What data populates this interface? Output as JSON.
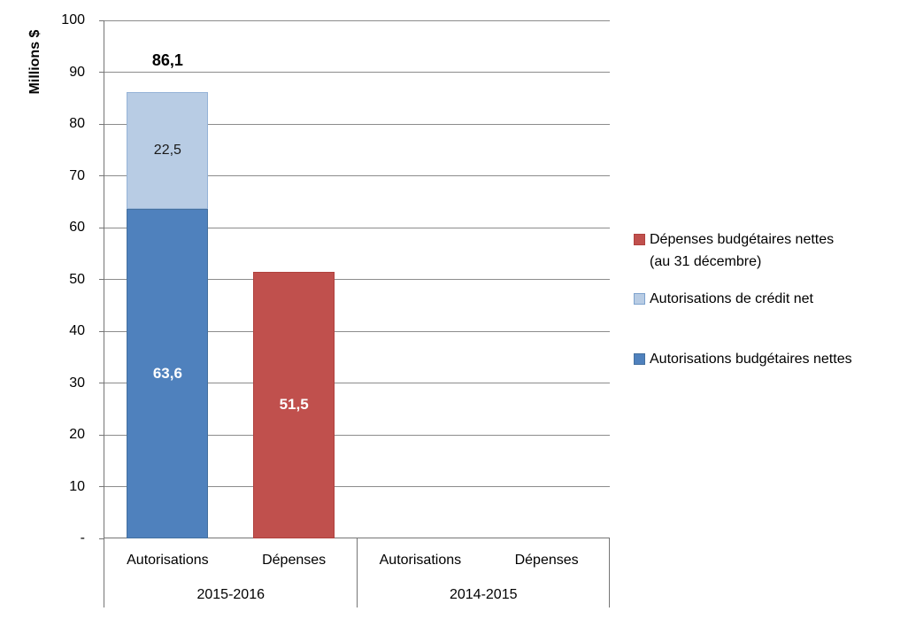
{
  "chart_data": {
    "type": "bar",
    "stacked": true,
    "title": "",
    "ylabel": "Millions $",
    "xlabel": "",
    "ylim": [
      0,
      100
    ],
    "ytick_interval": 10,
    "ytick_labels": [
      "-",
      "10",
      "20",
      "30",
      "40",
      "50",
      "60",
      "70",
      "80",
      "90",
      "100"
    ],
    "grid": true,
    "legend_position": "right",
    "groups": [
      {
        "label": "2015-2016",
        "categories": [
          "Autorisations",
          "Dépenses"
        ]
      },
      {
        "label": "2014-2015",
        "categories": [
          "Autorisations",
          "Dépenses"
        ]
      }
    ],
    "series": [
      {
        "name": "Autorisations budgétaires nettes",
        "color": "#4F81BD",
        "border_color": "#44709F",
        "label_style": "bold-white",
        "values": [
          63.6,
          null,
          null,
          null
        ],
        "labels": [
          "63,6",
          null,
          null,
          null
        ]
      },
      {
        "name": "Autorisations de crédit net",
        "color": "#B8CCE4",
        "border_color": "#95B3D7",
        "label_style": "plain-dark",
        "values": [
          22.5,
          null,
          null,
          null
        ],
        "labels": [
          "22,5",
          null,
          null,
          null
        ]
      },
      {
        "name": "Dépenses budgétaires nettes (au 31 décembre)",
        "color": "#C0504D",
        "border_color": "#B0413E",
        "label_style": "bold-white",
        "values": [
          null,
          51.5,
          null,
          null
        ],
        "labels": [
          null,
          "51,5",
          null,
          null
        ]
      }
    ],
    "totals": [
      {
        "category_index": 0,
        "label": "86,1",
        "value": 86.1
      }
    ]
  },
  "legend": {
    "items": [
      {
        "lines": [
          "Dépenses budgétaires nettes",
          "(au 31 décembre)"
        ],
        "color": "#C0504D",
        "border": "#B0413E"
      },
      {
        "lines": [
          "Autorisations de crédit net"
        ],
        "color": "#B8CCE4",
        "border": "#7FA3CE"
      },
      {
        "lines": [
          "Autorisations budgétaires nettes"
        ],
        "color": "#4F81BD",
        "border": "#44709F"
      }
    ]
  },
  "colors": {
    "gridline": "#8C8C8C",
    "axis": "#757575",
    "label_dark": "#1A1A1A",
    "label_white": "#FFFFFF",
    "background": "#FFFFFF"
  }
}
